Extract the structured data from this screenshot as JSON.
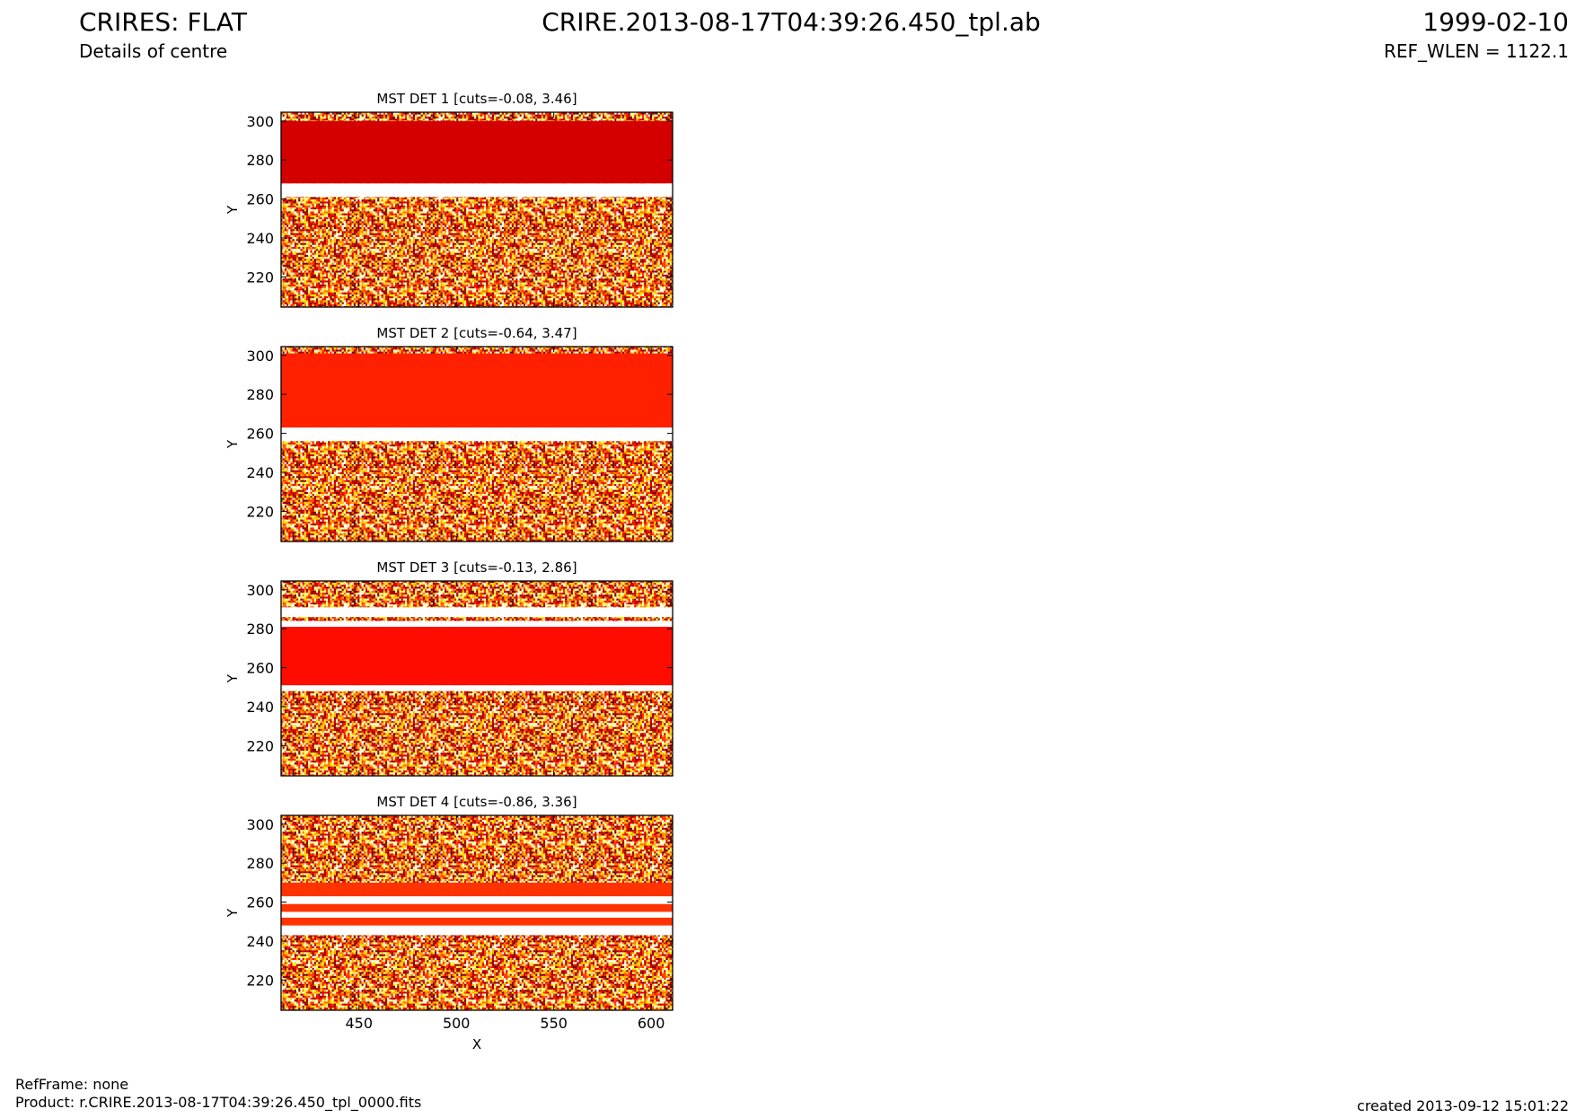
{
  "header": {
    "title": "CRIRES: FLAT",
    "subtitle": "Details of centre",
    "file": "CRIRE.2013-08-17T04:39:26.450_tpl.ab",
    "date": "1999-02-10",
    "ref_wlen": "REF_WLEN = 1122.1"
  },
  "footer": {
    "refframe": "RefFrame: none",
    "product": "Product: r.CRIRE.2013-08-17T04:39:26.450_tpl_0000.fits",
    "created": "created 2013-09-12 15:01:22"
  },
  "chart_data": [
    {
      "type": "image",
      "title": "MST DET 1 [cuts=-0.08, 3.46]",
      "ylabel": "Y",
      "xlim": [
        410,
        611
      ],
      "ylim": [
        204.5,
        304.5
      ],
      "xticks": [
        450,
        500,
        550,
        600
      ],
      "yticks": [
        220,
        240,
        260,
        280,
        300
      ],
      "bands": [
        {
          "y": [
            261,
            268
          ],
          "color": "#ffffff"
        },
        {
          "y": [
            268,
            300
          ],
          "color": "#d40000"
        }
      ]
    },
    {
      "type": "image",
      "title": "MST DET 2 [cuts=-0.64, 3.47]",
      "ylabel": "Y",
      "xlim": [
        410,
        611
      ],
      "ylim": [
        204.5,
        304.5
      ],
      "xticks": [
        450,
        500,
        550,
        600
      ],
      "yticks": [
        220,
        240,
        260,
        280,
        300
      ],
      "bands": [
        {
          "y": [
            256,
            263
          ],
          "color": "#ffffff"
        },
        {
          "y": [
            263,
            301
          ],
          "color": "#ff2000"
        }
      ]
    },
    {
      "type": "image",
      "title": "MST DET 3 [cuts=-0.13, 2.86]",
      "ylabel": "Y",
      "xlim": [
        410,
        611
      ],
      "ylim": [
        204.5,
        304.5
      ],
      "xticks": [
        450,
        500,
        550,
        600
      ],
      "yticks": [
        220,
        240,
        260,
        280,
        300
      ],
      "bands": [
        {
          "y": [
            286,
            291
          ],
          "color": "#ffffff"
        },
        {
          "y": [
            281,
            284
          ],
          "color": "#ffffff"
        },
        {
          "y": [
            248,
            251
          ],
          "color": "#ffffff"
        },
        {
          "y": [
            251,
            281
          ],
          "color": "#ff0c00"
        }
      ]
    },
    {
      "type": "image",
      "title": "MST DET 4 [cuts=-0.86, 3.36]",
      "xlabel": "X",
      "ylabel": "Y",
      "xlim": [
        410,
        611
      ],
      "ylim": [
        204.5,
        304.5
      ],
      "xticks": [
        450,
        500,
        550,
        600
      ],
      "yticks": [
        220,
        240,
        260,
        280,
        300
      ],
      "bands": [
        {
          "y": [
            243,
            263
          ],
          "color": "#ffffff"
        },
        {
          "y": [
            263,
            270
          ],
          "color": "#ff3300"
        },
        {
          "y": [
            255,
            259
          ],
          "color": "#ff3300"
        },
        {
          "y": [
            248,
            252
          ],
          "color": "#ff3300"
        }
      ]
    }
  ]
}
